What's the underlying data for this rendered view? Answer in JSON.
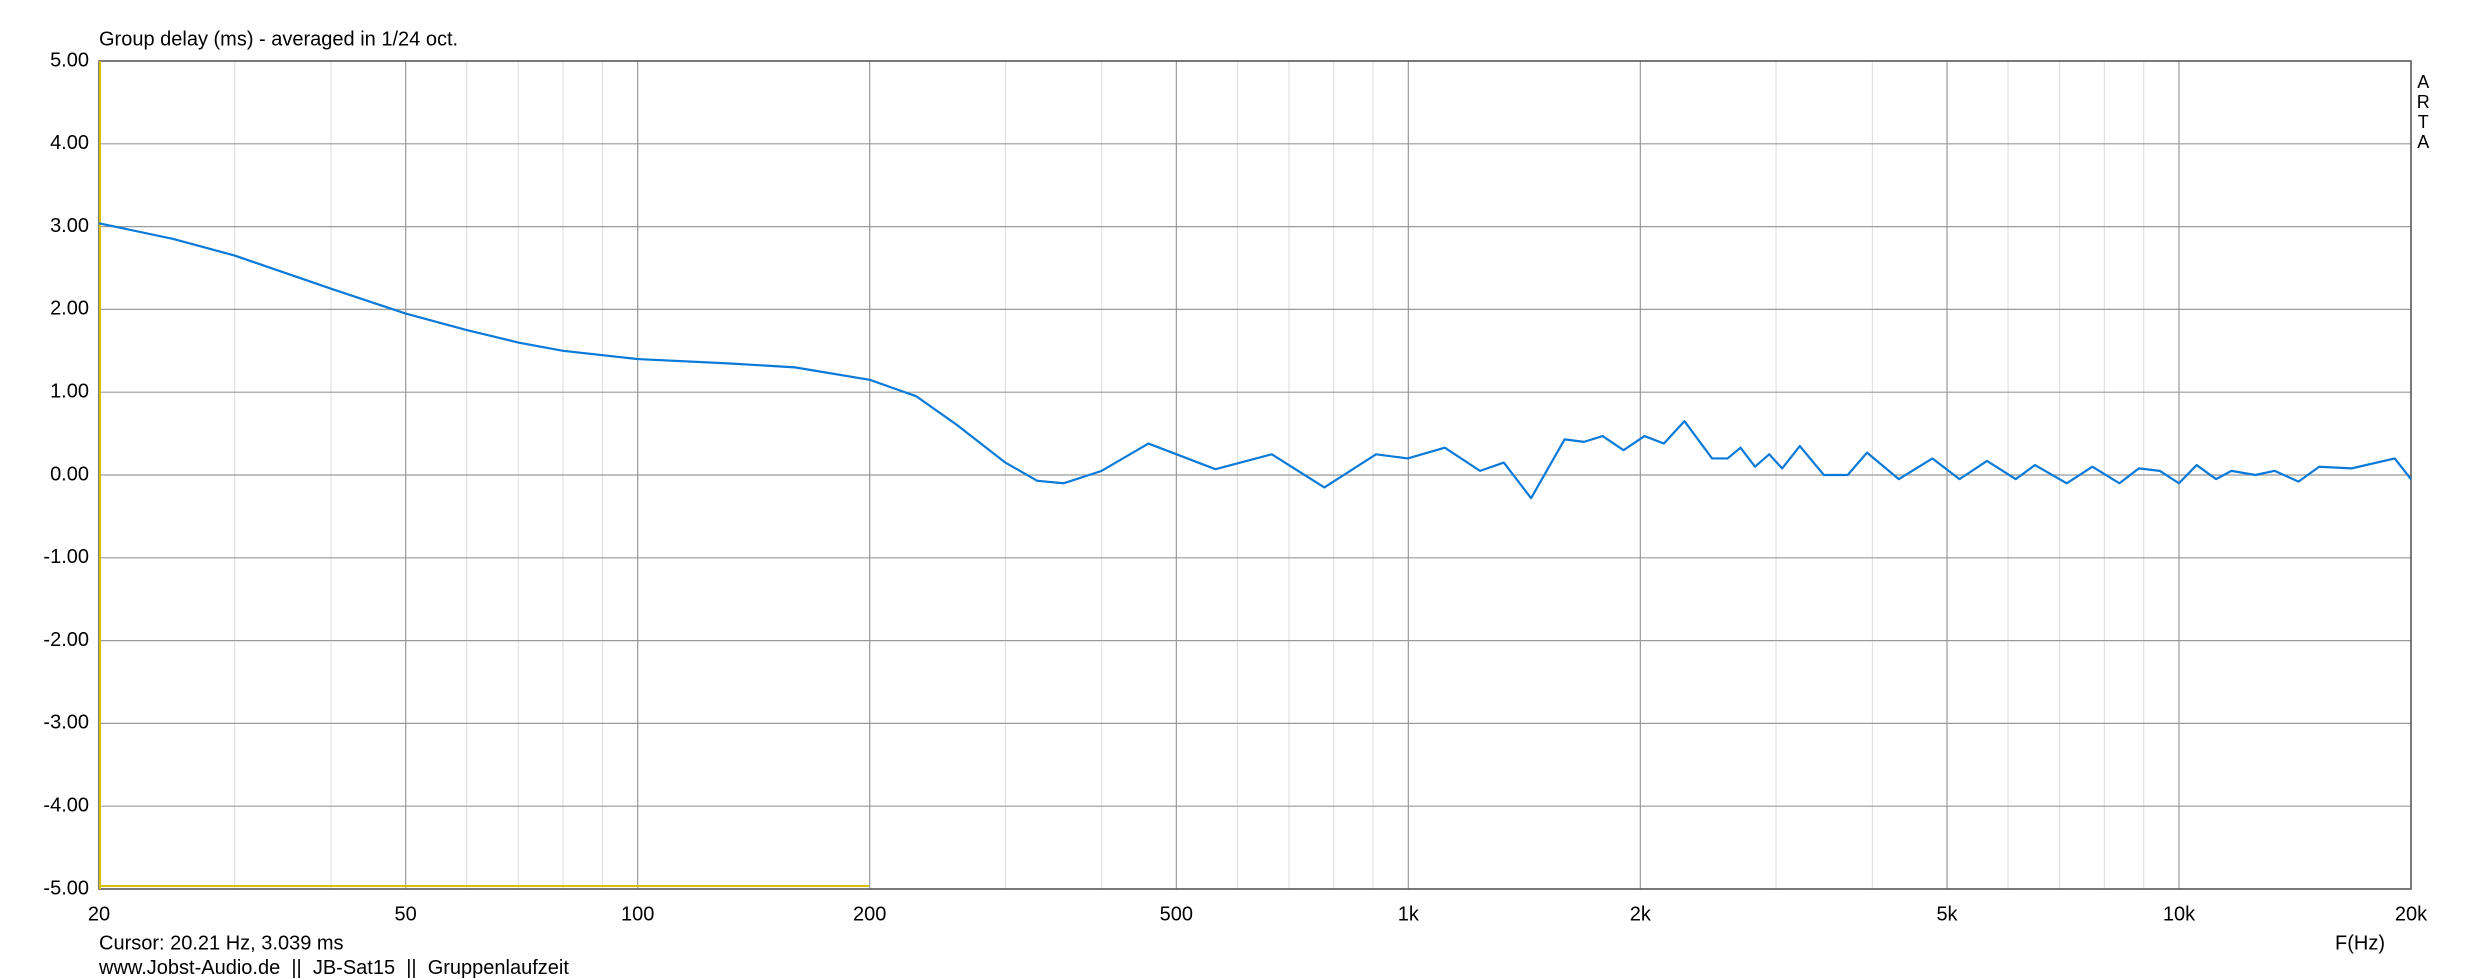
{
  "chart_data": {
    "type": "line",
    "title": "Group delay (ms) - averaged in 1/24 oct.",
    "watermark": "ARTA",
    "cursor_text": "Cursor: 20.21 Hz, 3.039 ms",
    "footer": "www.Jobst-Audio.de  ||  JB-Sat15  ||  Gruppenlaufzeit",
    "xlabel": "F(Hz)",
    "xscale": "log",
    "grid": true,
    "xlim": [
      20,
      20000
    ],
    "ylim": [
      -5,
      5
    ],
    "xticks": [
      20,
      50,
      100,
      200,
      500,
      {
        "value": 1000,
        "label": "1k"
      },
      {
        "value": 2000,
        "label": "2k"
      },
      {
        "value": 5000,
        "label": "5k"
      },
      {
        "value": 10000,
        "label": "10k"
      },
      {
        "value": 20000,
        "label": "20k"
      }
    ],
    "yticks": [
      {
        "value": -5,
        "label": "-5.00"
      },
      {
        "value": -4,
        "label": "-4.00"
      },
      {
        "value": -3,
        "label": "-3.00"
      },
      {
        "value": -2,
        "label": "-2.00"
      },
      {
        "value": -1,
        "label": "-1.00"
      },
      {
        "value": 0,
        "label": "0.00"
      },
      {
        "value": 1,
        "label": "1.00"
      },
      {
        "value": 2,
        "label": "2.00"
      },
      {
        "value": 3,
        "label": "3.00"
      },
      {
        "value": 4,
        "label": "4.00"
      },
      {
        "value": 5,
        "label": "5.00"
      }
    ],
    "series": [
      {
        "name": "Group delay",
        "color": "#0a7ad8",
        "x": [
          20,
          25,
          30,
          40,
          50,
          60,
          70,
          80,
          100,
          130,
          160,
          200,
          230,
          260,
          300,
          330,
          357,
          400,
          460,
          562,
          665,
          778,
          908,
          998,
          1115,
          1239,
          1330,
          1443,
          1595,
          1690,
          1787,
          1902,
          2025,
          2146,
          2282,
          2478,
          2596,
          2698,
          2817,
          2939,
          3055,
          3221,
          3461,
          3716,
          3937,
          4329,
          4787,
          5190,
          5635,
          6141,
          6503,
          7150,
          7720,
          8370,
          8870,
          9440,
          10000,
          10540,
          11170,
          11700,
          12560,
          13310,
          14290,
          15200,
          16750,
          19050,
          20000
        ],
        "values": [
          3.04,
          2.85,
          2.65,
          2.25,
          1.95,
          1.75,
          1.6,
          1.5,
          1.4,
          1.35,
          1.3,
          1.15,
          0.95,
          0.6,
          0.15,
          -0.07,
          -0.1,
          0.05,
          0.38,
          0.07,
          0.25,
          -0.15,
          0.25,
          0.2,
          0.33,
          0.05,
          0.15,
          -0.28,
          0.43,
          0.4,
          0.47,
          0.3,
          0.47,
          0.38,
          0.65,
          0.2,
          0.2,
          0.33,
          0.1,
          0.25,
          0.08,
          0.35,
          0.0,
          0.0,
          0.27,
          -0.05,
          0.2,
          -0.05,
          0.17,
          -0.05,
          0.12,
          -0.1,
          0.1,
          -0.1,
          0.08,
          0.05,
          -0.1,
          0.12,
          -0.05,
          0.05,
          0.0,
          0.05,
          -0.08,
          0.1,
          0.08,
          0.2,
          -0.05
        ]
      }
    ]
  }
}
